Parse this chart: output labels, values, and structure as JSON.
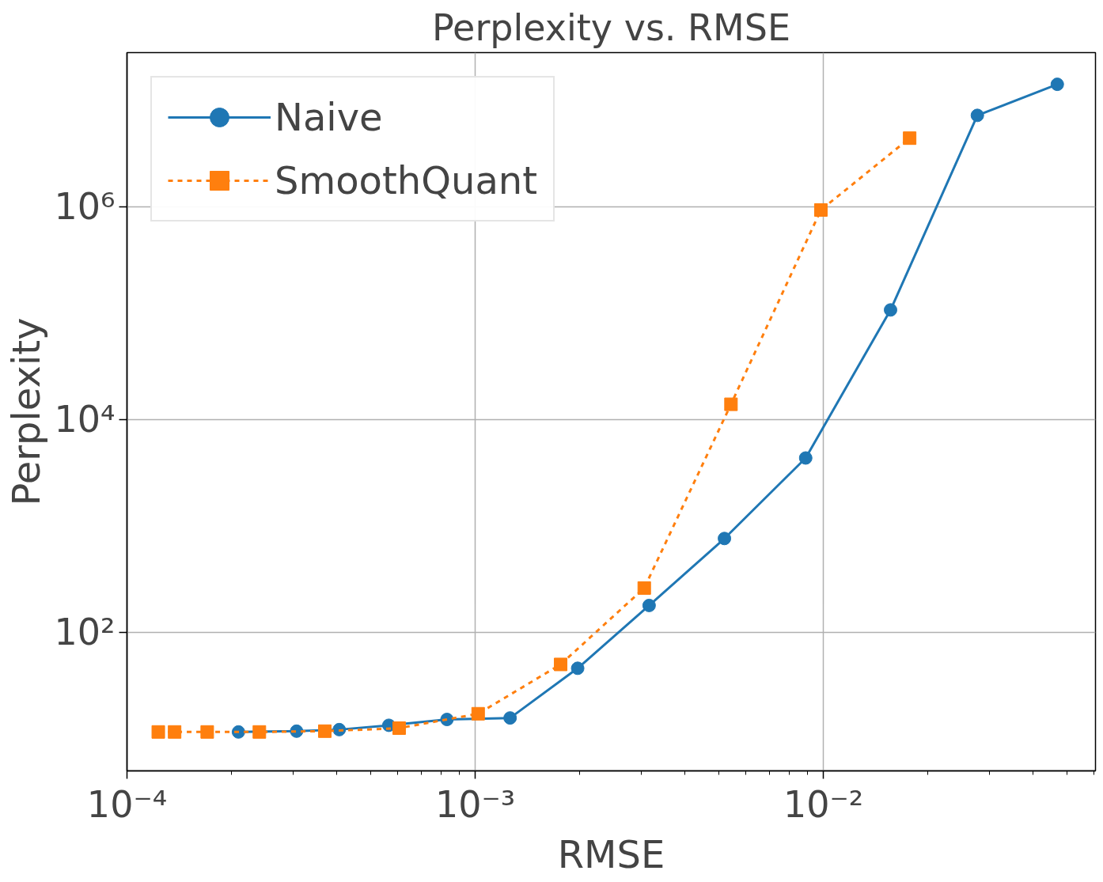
{
  "chart_data": {
    "type": "line",
    "title": "Perplexity vs. RMSE",
    "xlabel": "RMSE",
    "ylabel": "Perplexity",
    "log": "xy",
    "grid": true,
    "legend": "top left",
    "xlim": [
      0.0001,
      0.0605
    ],
    "ylim": [
      5.0,
      28000000
    ],
    "xticks": [
      {
        "value": 0.0001,
        "label": "10⁻⁴"
      },
      {
        "value": 0.001,
        "label": "10⁻³"
      },
      {
        "value": 0.01,
        "label": "10⁻²"
      }
    ],
    "yticks": [
      {
        "value": 100,
        "label": "10²"
      },
      {
        "value": 10000,
        "label": "10⁴"
      },
      {
        "value": 1000000,
        "label": "10⁶"
      }
    ],
    "series": [
      {
        "name": "Naive",
        "color": "#1f77b4",
        "marker": "circle",
        "line_style": "solid",
        "x": [
          0.000209,
          0.000307,
          0.000407,
          0.000565,
          0.00083,
          0.00126,
          0.00197,
          0.00316,
          0.0052,
          0.0089,
          0.0156,
          0.0277,
          0.047
        ],
        "values": [
          11.6,
          11.8,
          12.2,
          13.4,
          15.2,
          15.7,
          46,
          179,
          762,
          4350,
          107000,
          7200000,
          14100000
        ]
      },
      {
        "name": "SmoothQuant",
        "color": "#ff7f0e",
        "marker": "square",
        "line_style": "dashed",
        "x": [
          0.000123,
          0.000137,
          0.00017,
          0.00024,
          0.00037,
          0.000605,
          0.00102,
          0.00176,
          0.00306,
          0.00543,
          0.00984,
          0.0177
        ],
        "values": [
          11.6,
          11.6,
          11.6,
          11.6,
          11.8,
          12.6,
          17.2,
          50,
          261,
          13900,
          930000,
          4400000
        ]
      }
    ]
  }
}
